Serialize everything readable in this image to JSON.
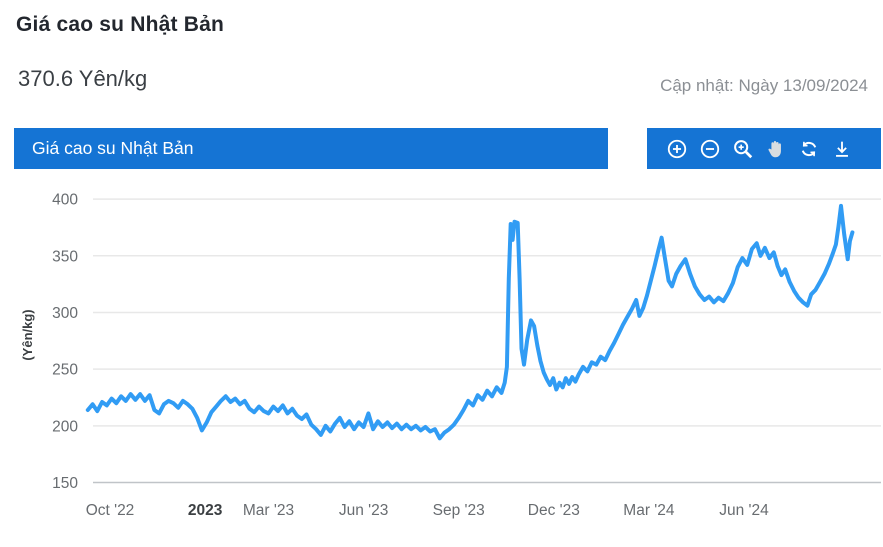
{
  "header": {
    "title": "Giá cao su Nhật Bản",
    "current_value": "370.6 Yên/kg",
    "updated": "Cập nhật: Ngày 13/09/2024"
  },
  "chart_panel": {
    "title": "Giá cao su Nhật Bản",
    "toolbar": [
      {
        "icon": "zoom-in-icon",
        "label": "Zoom in"
      },
      {
        "icon": "zoom-out-icon",
        "label": "Zoom out"
      },
      {
        "icon": "zoom-selection-icon",
        "label": "Selection zoom"
      },
      {
        "icon": "pan-hand-icon",
        "label": "Panning"
      },
      {
        "icon": "reset-zoom-icon",
        "label": "Reset zoom"
      },
      {
        "icon": "download-icon",
        "label": "Download"
      }
    ]
  },
  "colors": {
    "accent_blue": "#1574d4",
    "line_blue": "#319cf4",
    "grid": "#e8e8e8",
    "axis_line": "#c0c4c8",
    "tick_text": "#686c70",
    "tick_text_bold": "#3c4043",
    "icon_white": "#ffffff",
    "hand_gray": "#d9dde0"
  },
  "chart_data": {
    "type": "line",
    "title": "Giá cao su Nhật Bản",
    "ylabel": "(Yên/kg)",
    "x_unit": "months since 2022-09-01",
    "ylim": [
      150,
      410
    ],
    "yticks": [
      150,
      200,
      250,
      300,
      350,
      400
    ],
    "grid": "horizontal",
    "legend": false,
    "xticks": [
      {
        "label": "Oct '22",
        "t": 1,
        "bold": false
      },
      {
        "label": "2023",
        "t": 4,
        "bold": true
      },
      {
        "label": "Mar '23",
        "t": 6,
        "bold": false
      },
      {
        "label": "Jun '23",
        "t": 9,
        "bold": false
      },
      {
        "label": "Sep '23",
        "t": 12,
        "bold": false
      },
      {
        "label": "Dec '23",
        "t": 15,
        "bold": false
      },
      {
        "label": "Mar '24",
        "t": 18,
        "bold": false
      },
      {
        "label": "Jun '24",
        "t": 21,
        "bold": false
      }
    ],
    "series": [
      {
        "name": "Giá cao su Nhật Bản (Yên/kg)",
        "color": "#319cf4",
        "points": [
          [
            0.3,
            214
          ],
          [
            0.45,
            219
          ],
          [
            0.6,
            213
          ],
          [
            0.75,
            221
          ],
          [
            0.9,
            218
          ],
          [
            1.05,
            224
          ],
          [
            1.2,
            220
          ],
          [
            1.35,
            226
          ],
          [
            1.5,
            222
          ],
          [
            1.65,
            228
          ],
          [
            1.8,
            223
          ],
          [
            1.95,
            228
          ],
          [
            2.1,
            222
          ],
          [
            2.25,
            227
          ],
          [
            2.4,
            214
          ],
          [
            2.55,
            211
          ],
          [
            2.7,
            219
          ],
          [
            2.85,
            222
          ],
          [
            3.0,
            220
          ],
          [
            3.15,
            216
          ],
          [
            3.3,
            222
          ],
          [
            3.45,
            219
          ],
          [
            3.6,
            215
          ],
          [
            3.75,
            207
          ],
          [
            3.9,
            196
          ],
          [
            4.05,
            203
          ],
          [
            4.2,
            212
          ],
          [
            4.35,
            217
          ],
          [
            4.5,
            222
          ],
          [
            4.65,
            226
          ],
          [
            4.8,
            221
          ],
          [
            4.95,
            224
          ],
          [
            5.1,
            219
          ],
          [
            5.25,
            222
          ],
          [
            5.4,
            215
          ],
          [
            5.55,
            212
          ],
          [
            5.7,
            217
          ],
          [
            5.85,
            213
          ],
          [
            6.0,
            211
          ],
          [
            6.15,
            217
          ],
          [
            6.3,
            213
          ],
          [
            6.45,
            218
          ],
          [
            6.6,
            211
          ],
          [
            6.75,
            215
          ],
          [
            6.9,
            209
          ],
          [
            7.05,
            206
          ],
          [
            7.2,
            210
          ],
          [
            7.35,
            201
          ],
          [
            7.5,
            197
          ],
          [
            7.65,
            192
          ],
          [
            7.8,
            200
          ],
          [
            7.95,
            195
          ],
          [
            8.1,
            202
          ],
          [
            8.25,
            207
          ],
          [
            8.4,
            199
          ],
          [
            8.55,
            204
          ],
          [
            8.7,
            197
          ],
          [
            8.85,
            203
          ],
          [
            9.0,
            199
          ],
          [
            9.15,
            211
          ],
          [
            9.3,
            197
          ],
          [
            9.45,
            204
          ],
          [
            9.6,
            199
          ],
          [
            9.75,
            203
          ],
          [
            9.9,
            198
          ],
          [
            10.05,
            202
          ],
          [
            10.2,
            197
          ],
          [
            10.35,
            201
          ],
          [
            10.5,
            197
          ],
          [
            10.65,
            200
          ],
          [
            10.8,
            196
          ],
          [
            10.95,
            199
          ],
          [
            11.1,
            195
          ],
          [
            11.25,
            197
          ],
          [
            11.4,
            189
          ],
          [
            11.55,
            194
          ],
          [
            11.7,
            197
          ],
          [
            11.85,
            201
          ],
          [
            12.0,
            207
          ],
          [
            12.15,
            214
          ],
          [
            12.3,
            222
          ],
          [
            12.45,
            218
          ],
          [
            12.6,
            227
          ],
          [
            12.75,
            223
          ],
          [
            12.9,
            231
          ],
          [
            13.05,
            226
          ],
          [
            13.2,
            234
          ],
          [
            13.35,
            229
          ],
          [
            13.45,
            238
          ],
          [
            13.52,
            252
          ],
          [
            13.58,
            330
          ],
          [
            13.64,
            378
          ],
          [
            13.7,
            364
          ],
          [
            13.76,
            380
          ],
          [
            13.86,
            379
          ],
          [
            13.92,
            330
          ],
          [
            13.98,
            268
          ],
          [
            14.06,
            254
          ],
          [
            14.16,
            276
          ],
          [
            14.28,
            293
          ],
          [
            14.38,
            288
          ],
          [
            14.48,
            271
          ],
          [
            14.58,
            257
          ],
          [
            14.68,
            247
          ],
          [
            14.78,
            241
          ],
          [
            14.88,
            236
          ],
          [
            14.98,
            242
          ],
          [
            15.08,
            232
          ],
          [
            15.18,
            238
          ],
          [
            15.28,
            234
          ],
          [
            15.38,
            242
          ],
          [
            15.48,
            237
          ],
          [
            15.58,
            243
          ],
          [
            15.68,
            239
          ],
          [
            15.78,
            245
          ],
          [
            15.92,
            252
          ],
          [
            16.06,
            248
          ],
          [
            16.2,
            256
          ],
          [
            16.34,
            254
          ],
          [
            16.48,
            261
          ],
          [
            16.62,
            258
          ],
          [
            16.76,
            266
          ],
          [
            16.9,
            273
          ],
          [
            17.04,
            281
          ],
          [
            17.18,
            289
          ],
          [
            17.32,
            296
          ],
          [
            17.46,
            303
          ],
          [
            17.6,
            311
          ],
          [
            17.7,
            297
          ],
          [
            17.82,
            304
          ],
          [
            17.94,
            315
          ],
          [
            18.06,
            328
          ],
          [
            18.18,
            341
          ],
          [
            18.3,
            355
          ],
          [
            18.4,
            366
          ],
          [
            18.5,
            349
          ],
          [
            18.62,
            328
          ],
          [
            18.73,
            323
          ],
          [
            18.86,
            334
          ],
          [
            19.0,
            341
          ],
          [
            19.15,
            347
          ],
          [
            19.3,
            334
          ],
          [
            19.45,
            323
          ],
          [
            19.6,
            316
          ],
          [
            19.75,
            311
          ],
          [
            19.9,
            314
          ],
          [
            20.05,
            309
          ],
          [
            20.2,
            313
          ],
          [
            20.35,
            310
          ],
          [
            20.5,
            317
          ],
          [
            20.65,
            326
          ],
          [
            20.8,
            340
          ],
          [
            20.95,
            348
          ],
          [
            21.1,
            342
          ],
          [
            21.25,
            356
          ],
          [
            21.4,
            361
          ],
          [
            21.52,
            350
          ],
          [
            21.66,
            357
          ],
          [
            21.8,
            348
          ],
          [
            21.94,
            353
          ],
          [
            22.06,
            341
          ],
          [
            22.18,
            333
          ],
          [
            22.3,
            338
          ],
          [
            22.44,
            327
          ],
          [
            22.58,
            319
          ],
          [
            22.72,
            313
          ],
          [
            22.86,
            309
          ],
          [
            23.0,
            306
          ],
          [
            23.12,
            316
          ],
          [
            23.26,
            320
          ],
          [
            23.4,
            327
          ],
          [
            23.54,
            334
          ],
          [
            23.68,
            343
          ],
          [
            23.8,
            352
          ],
          [
            23.9,
            360
          ],
          [
            23.98,
            376
          ],
          [
            24.06,
            394
          ],
          [
            24.16,
            369
          ],
          [
            24.27,
            347
          ],
          [
            24.34,
            363
          ],
          [
            24.42,
            370.6
          ]
        ]
      }
    ]
  }
}
